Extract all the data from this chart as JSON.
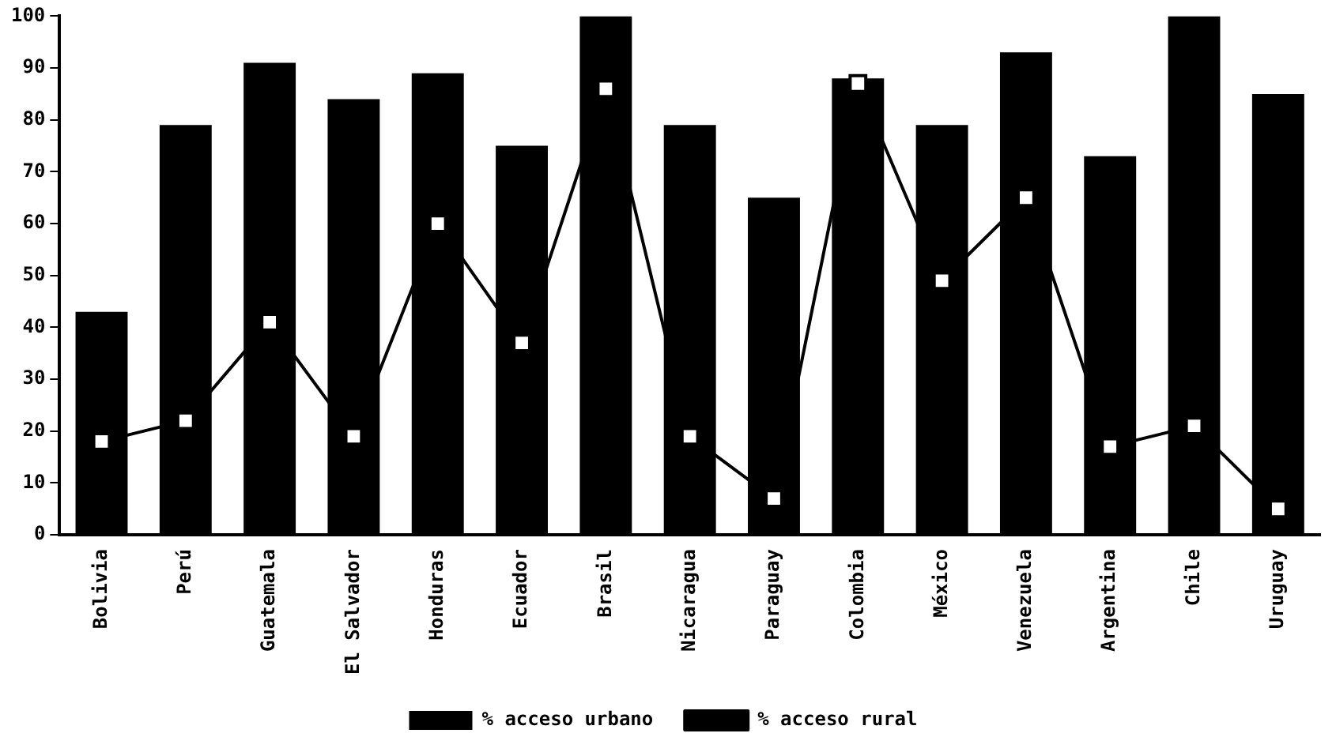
{
  "chart_data": {
    "type": "bar",
    "categories": [
      "Bolivia",
      "Perú",
      "Guatemala",
      "El Salvador",
      "Honduras",
      "Ecuador",
      "Brasil",
      "Nicaragua",
      "Paraguay",
      "Colombia",
      "México",
      "Venezuela",
      "Argentina",
      "Chile",
      "Uruguay"
    ],
    "series": [
      {
        "name": "% acceso urbano",
        "type": "bar",
        "color": "#000000",
        "values": [
          43,
          79,
          91,
          84,
          89,
          75,
          100,
          79,
          65,
          88,
          79,
          93,
          73,
          100,
          85
        ]
      },
      {
        "name": "% acceso rural",
        "type": "line",
        "color": "#000000",
        "marker": "square",
        "values": [
          18,
          22,
          41,
          19,
          60,
          37,
          86,
          19,
          7,
          87,
          49,
          65,
          17,
          21,
          5
        ]
      }
    ],
    "ylim": [
      0,
      100
    ],
    "yticks": [
      0,
      10,
      20,
      30,
      40,
      50,
      60,
      70,
      80,
      90,
      100
    ],
    "grid": false,
    "legend": "bottom"
  }
}
